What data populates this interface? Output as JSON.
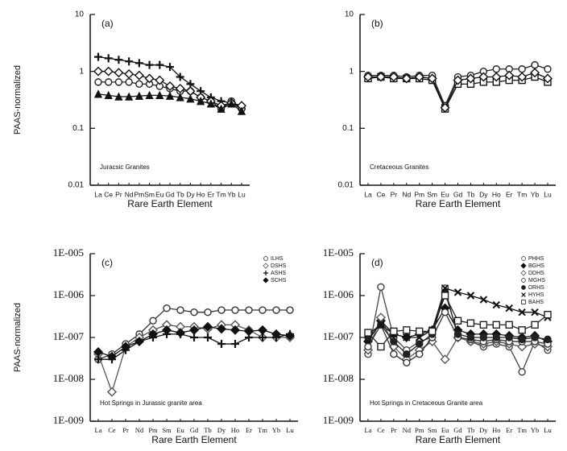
{
  "chart_data": [
    {
      "type": "line",
      "panel_label": "(a)",
      "y_label": "PAAS-normalized",
      "x_label": "Rare Earth Element",
      "annotation": "Juracsic Granites",
      "log_y": true,
      "categories": [
        "La",
        "Ce",
        "Pr",
        "Nd",
        "Pm",
        "Sm",
        "Eu",
        "Gd",
        "Tb",
        "Dy",
        "Ho",
        "Er",
        "Tm",
        "Yb",
        "Lu"
      ],
      "ylim": [
        0.01,
        10
      ],
      "yticks": [
        0.01,
        0.1,
        1,
        10
      ],
      "series": [
        {
          "color": "#111111",
          "marker": "plus",
          "values": [
            1.8,
            1.7,
            1.6,
            1.5,
            1.4,
            1.3,
            1.3,
            1.2,
            0.8,
            0.6,
            0.45,
            0.35,
            0.3,
            0.28,
            0.22
          ]
        },
        {
          "color": "#222222",
          "marker": "circle",
          "values": [
            0.65,
            0.65,
            0.65,
            0.65,
            0.6,
            0.6,
            0.55,
            0.5,
            0.45,
            0.45,
            0.35,
            0.3,
            0.22,
            0.3,
            0.22
          ]
        },
        {
          "color": "#111111",
          "marker": "diamond",
          "values": [
            1.0,
            1.0,
            0.95,
            0.9,
            0.85,
            0.75,
            0.7,
            0.55,
            0.5,
            0.45,
            0.35,
            0.3,
            0.25,
            0.28,
            0.25
          ]
        },
        {
          "color": "#111111",
          "marker": "triangle",
          "values": [
            0.4,
            0.38,
            0.36,
            0.36,
            0.37,
            0.38,
            0.38,
            0.37,
            0.35,
            0.33,
            0.3,
            0.27,
            0.22,
            0.27,
            0.2
          ]
        }
      ]
    },
    {
      "type": "line",
      "panel_label": "(b)",
      "x_label": "Rare Earth Element",
      "annotation": "Cretaceous Granites",
      "log_y": true,
      "categories": [
        "La",
        "Ce",
        "Pr",
        "Nd",
        "Pm",
        "Sm",
        "Eu",
        "Gd",
        "Tb",
        "Dy",
        "Ho",
        "Er",
        "Tm",
        "Yb",
        "Lu"
      ],
      "ylim": [
        0.01,
        10
      ],
      "yticks": [
        0.01,
        0.1,
        1,
        10
      ],
      "series": [
        {
          "color": "#222222",
          "marker": "circle",
          "values": [
            0.85,
            0.85,
            0.85,
            0.8,
            0.85,
            0.85,
            0.25,
            0.8,
            0.85,
            1.0,
            1.1,
            1.1,
            1.1,
            1.3,
            1.1
          ]
        },
        {
          "color": "#111111",
          "marker": "square",
          "values": [
            0.75,
            0.8,
            0.75,
            0.75,
            0.75,
            0.7,
            0.22,
            0.6,
            0.6,
            0.65,
            0.65,
            0.7,
            0.7,
            0.8,
            0.65
          ]
        },
        {
          "color": "#111111",
          "marker": "diamond",
          "values": [
            0.8,
            0.8,
            0.8,
            0.75,
            0.8,
            0.75,
            0.23,
            0.7,
            0.75,
            0.8,
            0.8,
            0.85,
            0.8,
            0.95,
            0.75
          ]
        }
      ]
    },
    {
      "type": "line",
      "panel_label": "(c)",
      "y_label": "PAAS-normalized",
      "x_label": "Rare Earth Element",
      "annotation": "Hot Springs in Jurassic granite area",
      "log_y": true,
      "legend": "upper right",
      "categories": [
        "La",
        "Ce",
        "Pr",
        "Nd",
        "Pm",
        "Sm",
        "Eu",
        "Gd",
        "Tb",
        "Dy",
        "Ho",
        "Er",
        "Tm",
        "Yb",
        "Lu"
      ],
      "ylim": [
        1e-09,
        1e-05
      ],
      "yticks": [
        {
          "value": 1e-09,
          "label": "1E-009"
        },
        {
          "value": 1e-08,
          "label": "1E-008"
        },
        {
          "value": 1e-07,
          "label": "1E-007"
        },
        {
          "value": 1e-06,
          "label": "1E-006"
        },
        {
          "value": 1e-05,
          "label": "1E-005"
        }
      ],
      "series": [
        {
          "name": "ILHS",
          "color": "#333333",
          "marker": "circle",
          "values": [
            3e-08,
            4e-08,
            7e-08,
            1.2e-07,
            2.5e-07,
            5e-07,
            4.5e-07,
            4e-07,
            4e-07,
            4.5e-07,
            4.5e-07,
            4.5e-07,
            4.5e-07,
            4.5e-07,
            4.5e-07
          ]
        },
        {
          "name": "DSHS",
          "color": "#555555",
          "marker": "diamond",
          "values": [
            4e-08,
            5e-09,
            6e-08,
            1e-07,
            1.5e-07,
            2e-07,
            1.8e-07,
            1.8e-07,
            1.6e-07,
            2e-07,
            2e-07,
            1.5e-07,
            1e-07,
            1e-07,
            1e-07
          ]
        },
        {
          "name": "ASHS",
          "color": "#111111",
          "marker": "plus",
          "values": [
            3e-08,
            3e-08,
            5e-08,
            8e-08,
            1e-07,
            1.2e-07,
            1.2e-07,
            1e-07,
            1e-07,
            7e-08,
            7e-08,
            1e-07,
            1e-07,
            1e-07,
            1.2e-07
          ]
        },
        {
          "name": "SCHS",
          "color": "#111111",
          "marker": "filled-diamond",
          "values": [
            4.5e-08,
            3.5e-08,
            6e-08,
            8e-08,
            1.2e-07,
            1.5e-07,
            1.3e-07,
            1.5e-07,
            1.8e-07,
            1.6e-07,
            1.5e-07,
            1.4e-07,
            1.5e-07,
            1.2e-07,
            1.1e-07
          ]
        }
      ]
    },
    {
      "type": "line",
      "panel_label": "(d)",
      "x_label": "Rare Earth Element",
      "annotation": "Hot Springs in Cretaceous Granite area",
      "log_y": true,
      "legend": "upper right",
      "categories": [
        "La",
        "Ce",
        "Pr",
        "Nd",
        "Pm",
        "Sm",
        "Eu",
        "Gd",
        "Tb",
        "Dy",
        "Ho",
        "Er",
        "Tm",
        "Yb",
        "Lu"
      ],
      "ylim": [
        1e-09,
        1e-05
      ],
      "yticks": [
        {
          "value": 1e-09,
          "label": "1E-009"
        },
        {
          "value": 1e-08,
          "label": "1E-008"
        },
        {
          "value": 1e-07,
          "label": "1E-007"
        },
        {
          "value": 1e-06,
          "label": "1E-006"
        },
        {
          "value": 1e-05,
          "label": "1E-005"
        }
      ],
      "series": [
        {
          "name": "PHHS",
          "color": "#444444",
          "marker": "circle",
          "values": [
            4e-08,
            1.6e-06,
            1e-07,
            5e-08,
            8e-08,
            1e-07,
            1.5e-06,
            1e-07,
            8e-08,
            6e-08,
            7e-08,
            6e-08,
            1.5e-08,
            8e-08,
            5e-08
          ]
        },
        {
          "name": "BGHS",
          "color": "#111111",
          "marker": "filled-diamond",
          "values": [
            8e-08,
            2.5e-07,
            1.2e-07,
            1e-07,
            1.2e-07,
            1.5e-07,
            5e-07,
            1.5e-07,
            1.2e-07,
            1.2e-07,
            1.2e-07,
            1.1e-07,
            1e-07,
            1.1e-07,
            8e-08
          ]
        },
        {
          "name": "DDHS",
          "color": "#555555",
          "marker": "diamond",
          "values": [
            5e-08,
            3e-07,
            6e-08,
            3e-08,
            5e-08,
            8e-08,
            3e-08,
            1e-07,
            8e-08,
            7e-08,
            8e-08,
            7e-08,
            6e-08,
            7e-08,
            6e-08
          ]
        },
        {
          "name": "MGHS",
          "color": "#333333",
          "marker": "circle",
          "values": [
            6e-08,
            2e-07,
            4e-08,
            2.5e-08,
            4e-08,
            1e-07,
            4e-07,
            1e-07,
            9e-08,
            8e-08,
            9e-08,
            8e-08,
            8e-08,
            8e-08,
            7e-08
          ]
        },
        {
          "name": "DRHS",
          "color": "#222222",
          "marker": "filled-circle",
          "values": [
            1e-07,
            2e-07,
            8e-08,
            4e-08,
            7e-08,
            1.2e-07,
            1.2e-06,
            1.2e-07,
            1e-07,
            1e-07,
            1e-07,
            1e-07,
            9e-08,
            1e-07,
            9e-08
          ]
        },
        {
          "name": "HYHS",
          "color": "#111111",
          "marker": "cross",
          "values": [
            1.2e-07,
            2e-07,
            1.2e-07,
            1e-07,
            1e-07,
            1.5e-07,
            1.5e-06,
            1.2e-06,
            1e-06,
            8e-07,
            6e-07,
            5e-07,
            4e-07,
            4e-07,
            3e-07
          ]
        },
        {
          "name": "BAHS",
          "color": "#222222",
          "marker": "square",
          "values": [
            1.3e-07,
            6e-08,
            1.4e-07,
            1.5e-07,
            1.4e-07,
            1.4e-07,
            1e-06,
            2.5e-07,
            2.2e-07,
            2e-07,
            2e-07,
            2e-07,
            1.5e-07,
            2e-07,
            3.5e-07
          ]
        }
      ]
    }
  ]
}
